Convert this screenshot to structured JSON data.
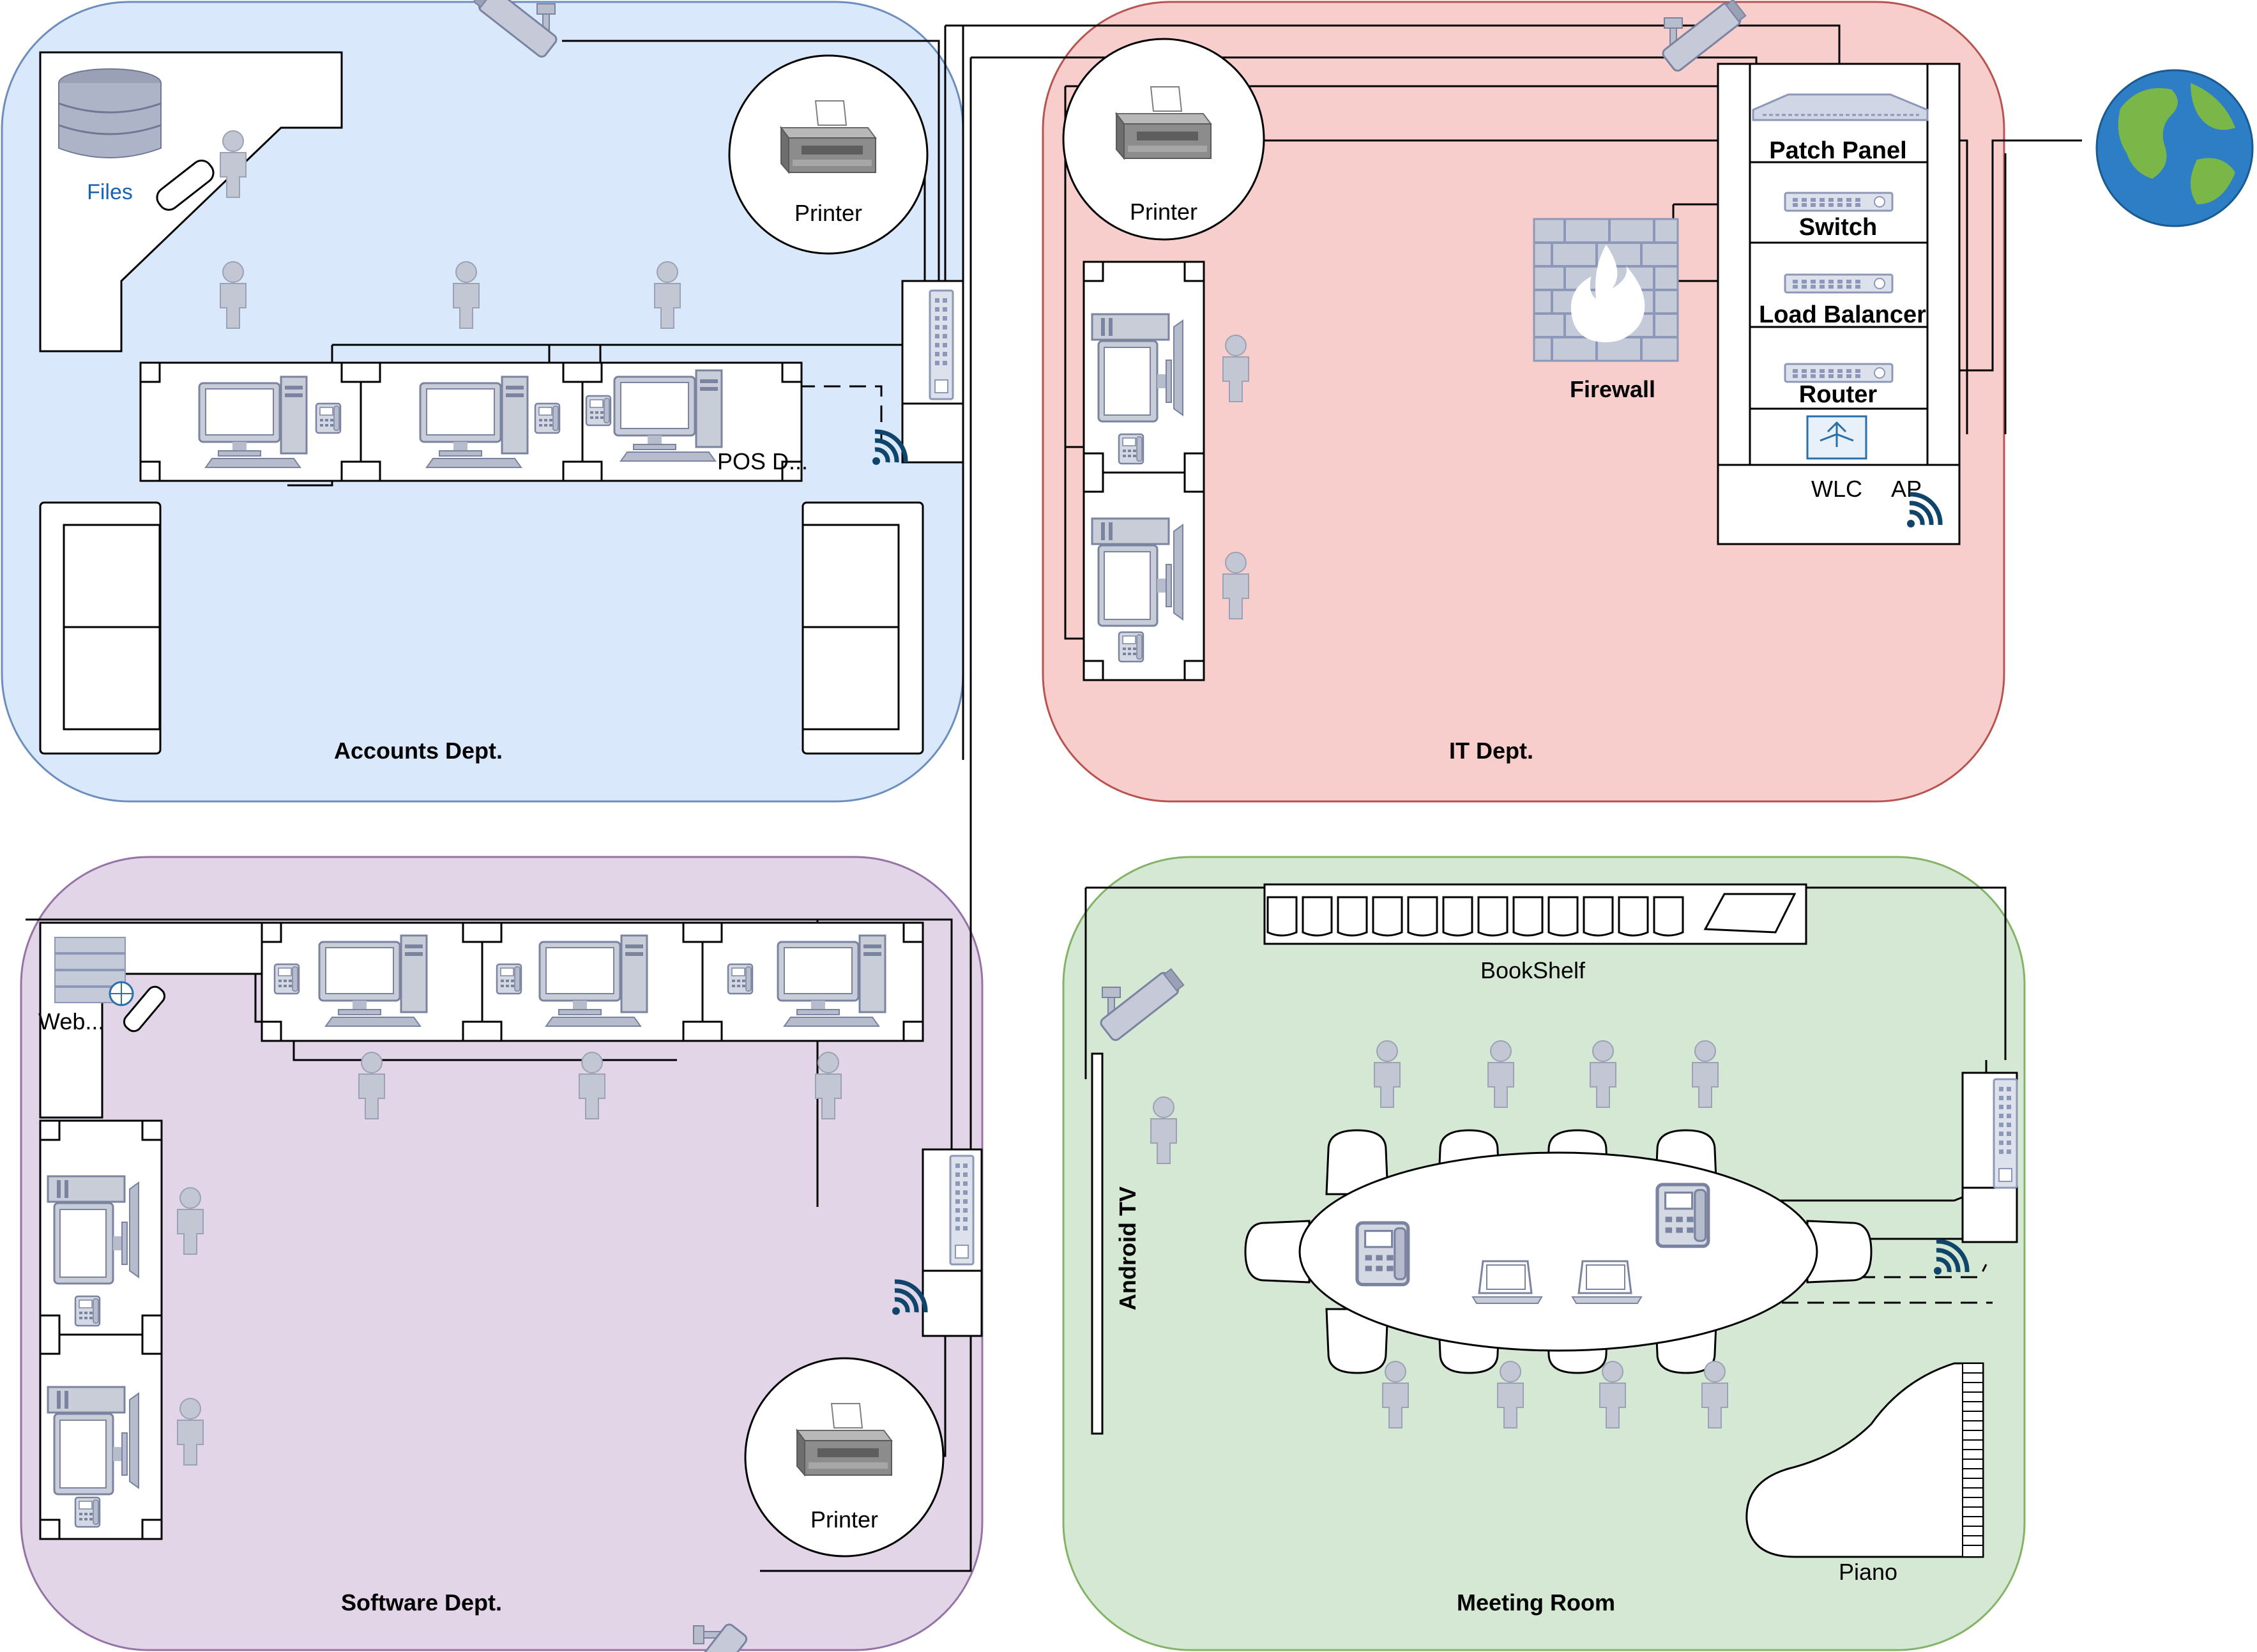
{
  "rooms": {
    "accounts": "Accounts Dept.",
    "it": "IT Dept.",
    "software": "Software Dept.",
    "meeting": "Meeting Room"
  },
  "labels": {
    "files": "Files",
    "printer": "Printer",
    "pos": "POS D...",
    "firewall": "Firewall",
    "patch_panel": "Patch Panel",
    "switch": "Switch",
    "load_balancer": "Load Balancer",
    "router": "Router",
    "wlc": "WLC",
    "ap": "AP",
    "web": "Web...",
    "bookshelf": "BookShelf",
    "android_tv": "Android TV",
    "piano": "Piano"
  },
  "colors": {
    "accounts_fill": "#dae8fc",
    "accounts_stroke": "#6c8ebf",
    "it_fill": "#f8cecc",
    "it_stroke": "#b85450",
    "software_fill": "#e1d5e7",
    "software_stroke": "#9673a6",
    "meeting_fill": "#d5e8d4",
    "meeting_stroke": "#82b366",
    "wifi": "#10456b",
    "device": "#8d98b8",
    "files_text": "#1a62b5"
  }
}
